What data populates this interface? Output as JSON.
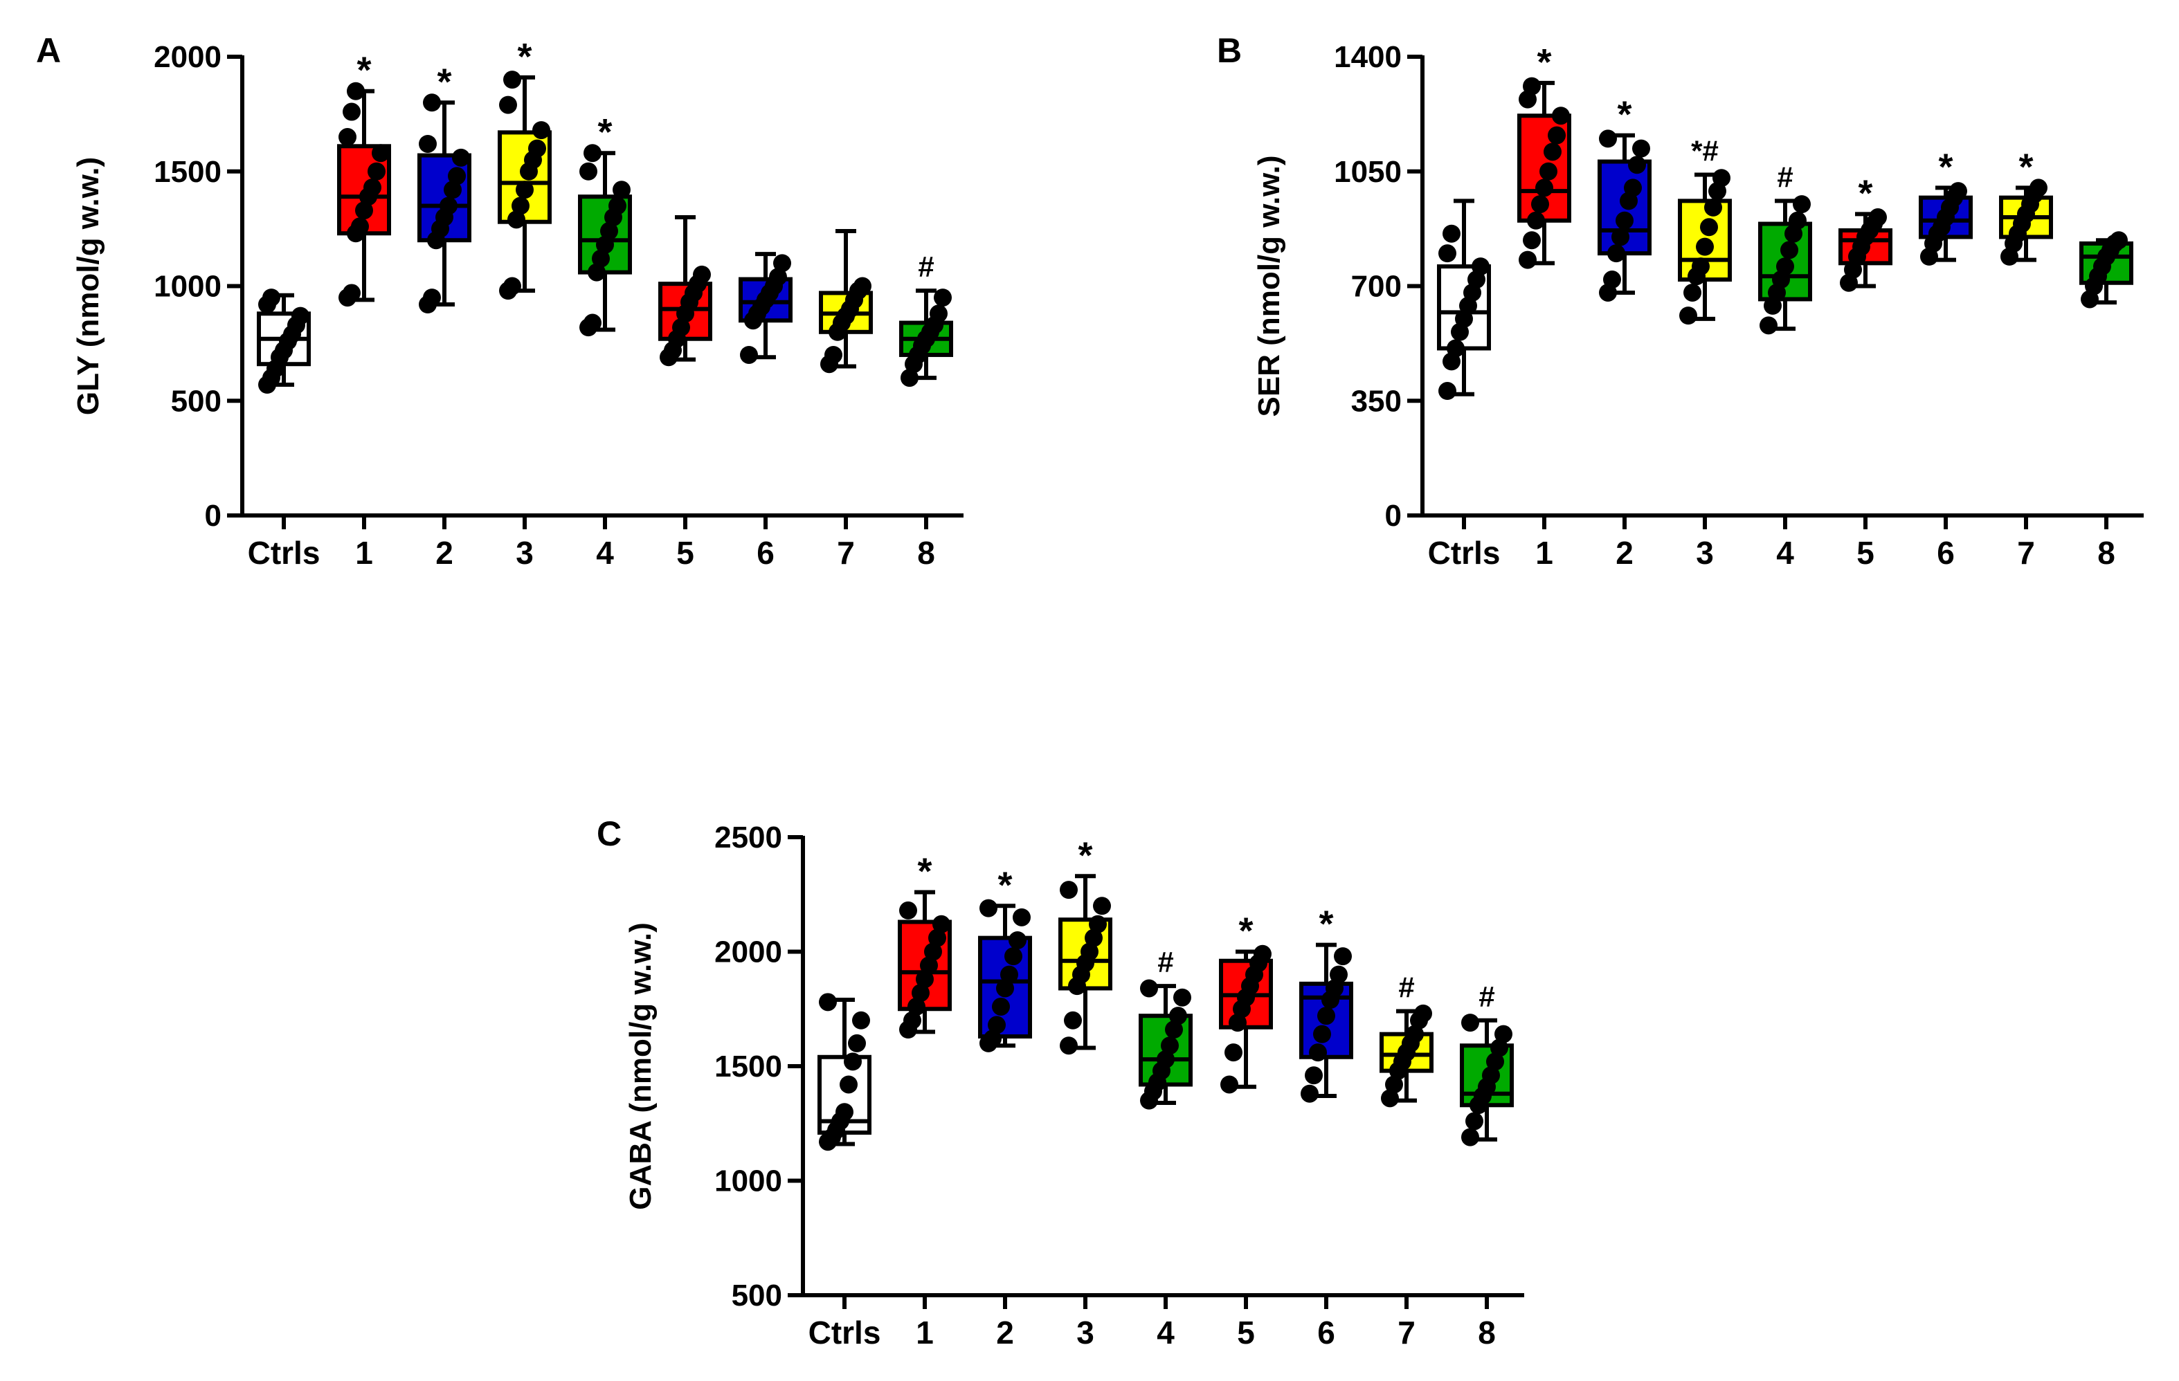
{
  "figure": {
    "panels": [
      "A",
      "B",
      "C"
    ]
  },
  "chart_data": [
    {
      "type": "box",
      "panel": "A",
      "ylabel": "GLY (nmol/g w.w.)",
      "categories": [
        "Ctrls",
        "1",
        "2",
        "3",
        "4",
        "5",
        "6",
        "7",
        "8"
      ],
      "ylim": [
        0,
        2000
      ],
      "yticks": [
        0,
        500,
        1000,
        1500,
        2000
      ],
      "ytick_labels": [
        "0",
        "500",
        "1000",
        "1500",
        "2000"
      ],
      "colors": [
        "#ffffff",
        "#ff0000",
        "#0000cc",
        "#ffff00",
        "#00aa00",
        "#ff0000",
        "#0000cc",
        "#ffff00",
        "#00aa00"
      ],
      "boxes": [
        {
          "min": 570,
          "q1": 660,
          "median": 770,
          "q3": 880,
          "max": 960,
          "points": [
            570,
            600,
            640,
            690,
            720,
            760,
            790,
            830,
            870,
            920,
            950
          ]
        },
        {
          "min": 940,
          "q1": 1230,
          "median": 1390,
          "q3": 1610,
          "max": 1850,
          "points": [
            950,
            970,
            1230,
            1260,
            1330,
            1390,
            1430,
            1500,
            1580,
            1650,
            1760,
            1850
          ]
        },
        {
          "min": 920,
          "q1": 1200,
          "median": 1350,
          "q3": 1570,
          "max": 1800,
          "points": [
            920,
            950,
            1200,
            1250,
            1300,
            1350,
            1420,
            1480,
            1560,
            1620,
            1800
          ]
        },
        {
          "min": 980,
          "q1": 1280,
          "median": 1450,
          "q3": 1670,
          "max": 1910,
          "points": [
            980,
            1000,
            1290,
            1350,
            1420,
            1500,
            1550,
            1600,
            1680,
            1790,
            1900
          ]
        },
        {
          "min": 810,
          "q1": 1060,
          "median": 1200,
          "q3": 1390,
          "max": 1580,
          "points": [
            820,
            840,
            1060,
            1120,
            1180,
            1240,
            1300,
            1350,
            1420,
            1500,
            1580
          ]
        },
        {
          "min": 680,
          "q1": 770,
          "median": 900,
          "q3": 1010,
          "max": 1300,
          "points": [
            690,
            720,
            770,
            820,
            880,
            930,
            970,
            1010,
            1050
          ]
        },
        {
          "min": 690,
          "q1": 850,
          "median": 930,
          "q3": 1030,
          "max": 1140,
          "points": [
            700,
            850,
            880,
            910,
            940,
            970,
            1000,
            1040,
            1100
          ]
        },
        {
          "min": 650,
          "q1": 800,
          "median": 880,
          "q3": 970,
          "max": 1240,
          "points": [
            660,
            700,
            800,
            840,
            870,
            900,
            940,
            980,
            1000
          ]
        },
        {
          "min": 600,
          "q1": 700,
          "median": 770,
          "q3": 840,
          "max": 980,
          "points": [
            600,
            660,
            700,
            740,
            770,
            800,
            830,
            880,
            950
          ]
        }
      ],
      "annotations": [
        "",
        "*",
        "*",
        "*",
        "*",
        "",
        "",
        "",
        "#"
      ]
    },
    {
      "type": "box",
      "panel": "B",
      "ylabel": "SER (nmol/g w.w.)",
      "categories": [
        "Ctrls",
        "1",
        "2",
        "3",
        "4",
        "5",
        "6",
        "7",
        "8"
      ],
      "ylim": [
        0,
        1400
      ],
      "yticks": [
        0,
        350,
        700,
        1050,
        1400
      ],
      "ytick_labels": [
        "0",
        "350",
        "700",
        "1050",
        "1400"
      ],
      "colors": [
        "#ffffff",
        "#ff0000",
        "#0000cc",
        "#ffff00",
        "#00aa00",
        "#ff0000",
        "#0000cc",
        "#ffff00",
        "#00aa00"
      ],
      "boxes": [
        {
          "min": 370,
          "q1": 510,
          "median": 620,
          "q3": 760,
          "max": 960,
          "points": [
            380,
            470,
            510,
            560,
            600,
            640,
            680,
            720,
            760,
            800,
            860
          ]
        },
        {
          "min": 770,
          "q1": 900,
          "median": 990,
          "q3": 1220,
          "max": 1320,
          "points": [
            780,
            840,
            900,
            950,
            1000,
            1050,
            1110,
            1160,
            1220,
            1270,
            1310
          ]
        },
        {
          "min": 680,
          "q1": 800,
          "median": 870,
          "q3": 1080,
          "max": 1160,
          "points": [
            680,
            720,
            800,
            850,
            900,
            960,
            1000,
            1070,
            1120,
            1150
          ]
        },
        {
          "min": 600,
          "q1": 720,
          "median": 780,
          "q3": 960,
          "max": 1040,
          "points": [
            610,
            680,
            730,
            760,
            820,
            880,
            940,
            990,
            1030
          ]
        },
        {
          "min": 570,
          "q1": 660,
          "median": 730,
          "q3": 890,
          "max": 960,
          "points": [
            580,
            640,
            680,
            720,
            760,
            810,
            860,
            900,
            950
          ]
        },
        {
          "min": 700,
          "q1": 770,
          "median": 840,
          "q3": 870,
          "max": 920,
          "points": [
            710,
            750,
            790,
            820,
            850,
            870,
            890,
            910
          ]
        },
        {
          "min": 780,
          "q1": 850,
          "median": 900,
          "q3": 970,
          "max": 1000,
          "points": [
            790,
            830,
            860,
            880,
            910,
            940,
            970,
            990
          ]
        },
        {
          "min": 780,
          "q1": 850,
          "median": 910,
          "q3": 970,
          "max": 1000,
          "points": [
            790,
            830,
            860,
            890,
            920,
            950,
            980,
            1000
          ]
        },
        {
          "min": 650,
          "q1": 710,
          "median": 790,
          "q3": 830,
          "max": 840,
          "points": [
            660,
            700,
            730,
            760,
            790,
            810,
            830,
            840
          ]
        }
      ],
      "annotations": [
        "",
        "*",
        "*",
        "*#",
        "#",
        "*",
        "*",
        "*",
        ""
      ]
    },
    {
      "type": "box",
      "panel": "C",
      "ylabel": "GABA (nmol/g w.w.)",
      "categories": [
        "Ctrls",
        "1",
        "2",
        "3",
        "4",
        "5",
        "6",
        "7",
        "8"
      ],
      "ylim": [
        500,
        2500
      ],
      "yticks": [
        500,
        1000,
        1500,
        2000,
        2500
      ],
      "ytick_labels": [
        "500",
        "1000",
        "1500",
        "2000",
        "2500"
      ],
      "colors": [
        "#ffffff",
        "#ff0000",
        "#0000cc",
        "#ffff00",
        "#00aa00",
        "#ff0000",
        "#0000cc",
        "#ffff00",
        "#00aa00"
      ],
      "boxes": [
        {
          "min": 1160,
          "q1": 1210,
          "median": 1260,
          "q3": 1540,
          "max": 1790,
          "points": [
            1170,
            1190,
            1220,
            1260,
            1300,
            1420,
            1520,
            1600,
            1700,
            1780
          ]
        },
        {
          "min": 1650,
          "q1": 1750,
          "median": 1910,
          "q3": 2130,
          "max": 2260,
          "points": [
            1660,
            1700,
            1760,
            1820,
            1880,
            1940,
            2000,
            2060,
            2120,
            2180
          ]
        },
        {
          "min": 1590,
          "q1": 1630,
          "median": 1870,
          "q3": 2060,
          "max": 2200,
          "points": [
            1600,
            1620,
            1680,
            1760,
            1840,
            1900,
            1980,
            2050,
            2150,
            2190
          ]
        },
        {
          "min": 1580,
          "q1": 1840,
          "median": 1960,
          "q3": 2140,
          "max": 2330,
          "points": [
            1590,
            1700,
            1850,
            1900,
            1950,
            2000,
            2060,
            2120,
            2200,
            2270
          ]
        },
        {
          "min": 1340,
          "q1": 1420,
          "median": 1530,
          "q3": 1720,
          "max": 1850,
          "points": [
            1350,
            1390,
            1430,
            1480,
            1530,
            1590,
            1660,
            1720,
            1800,
            1840
          ]
        },
        {
          "min": 1410,
          "q1": 1670,
          "median": 1810,
          "q3": 1960,
          "max": 2000,
          "points": [
            1420,
            1560,
            1690,
            1750,
            1800,
            1850,
            1900,
            1950,
            1990
          ]
        },
        {
          "min": 1370,
          "q1": 1540,
          "median": 1800,
          "q3": 1860,
          "max": 2030,
          "points": [
            1380,
            1460,
            1560,
            1640,
            1720,
            1790,
            1840,
            1900,
            1980
          ]
        },
        {
          "min": 1350,
          "q1": 1480,
          "median": 1550,
          "q3": 1640,
          "max": 1740,
          "points": [
            1360,
            1420,
            1480,
            1520,
            1560,
            1600,
            1640,
            1700,
            1730
          ]
        },
        {
          "min": 1180,
          "q1": 1330,
          "median": 1380,
          "q3": 1590,
          "max": 1700,
          "points": [
            1190,
            1260,
            1330,
            1370,
            1410,
            1460,
            1520,
            1580,
            1640,
            1690
          ]
        }
      ],
      "annotations": [
        "",
        "*",
        "*",
        "*",
        "#",
        "*",
        "*",
        "#",
        "#"
      ]
    }
  ]
}
